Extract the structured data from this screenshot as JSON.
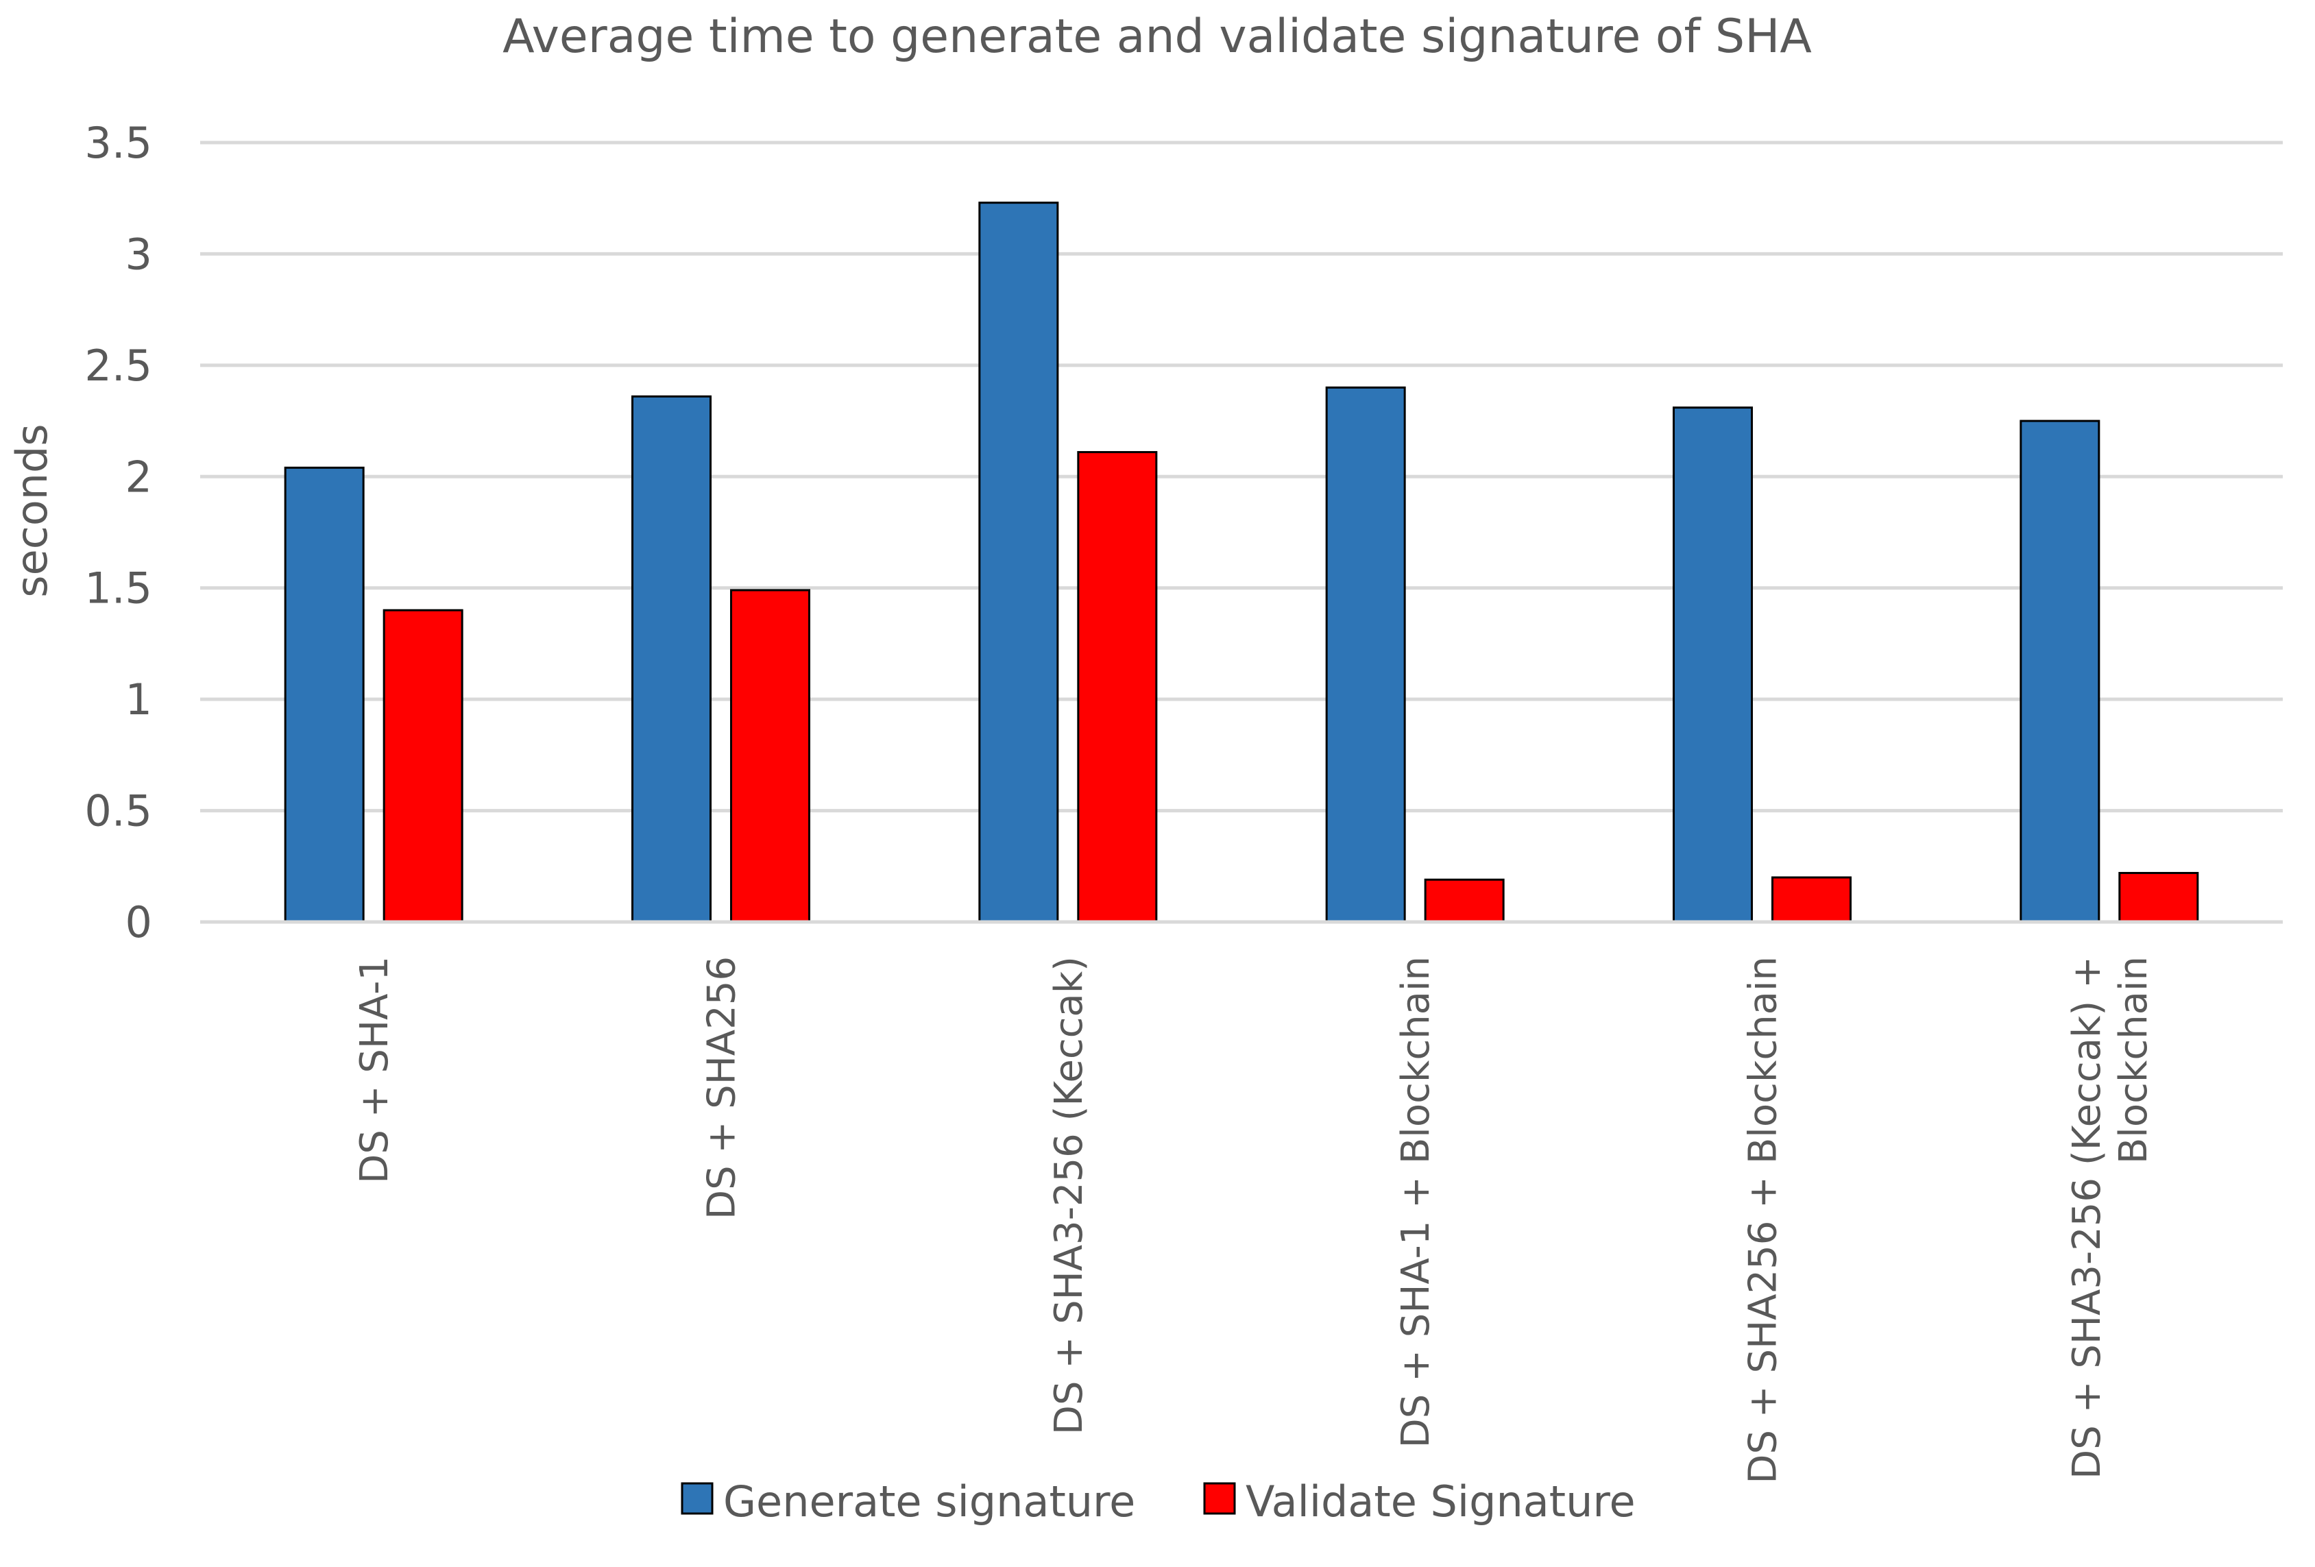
{
  "chart_data": {
    "type": "bar",
    "title": "Average time to generate and validate signature of SHA",
    "xlabel": "",
    "ylabel": "seconds",
    "ylim": [
      0,
      3.5
    ],
    "yticks": [
      0,
      0.5,
      1,
      1.5,
      2,
      2.5,
      3,
      3.5
    ],
    "ytick_labels": [
      "0",
      "0.5",
      "1",
      "1.5",
      "2",
      "2.5",
      "3",
      "3.5"
    ],
    "grid": true,
    "legend_position": "bottom",
    "categories": [
      [
        "DS + SHA-1"
      ],
      [
        "DS + SHA256"
      ],
      [
        "DS + SHA3-256 (Keccak)"
      ],
      [
        "DS + SHA-1 + Blockchain"
      ],
      [
        "DS + SHA256 + Blockchain"
      ],
      [
        "DS + SHA3-256 (Keccak) +",
        "Blockchain"
      ]
    ],
    "series": [
      {
        "name": "Generate signature",
        "color": "#2e75b6",
        "values": [
          2.04,
          2.36,
          3.23,
          2.4,
          2.31,
          2.25
        ]
      },
      {
        "name": "Validate Signature",
        "color": "#ff0000",
        "values": [
          1.4,
          1.49,
          2.11,
          0.19,
          0.2,
          0.22
        ]
      }
    ]
  }
}
